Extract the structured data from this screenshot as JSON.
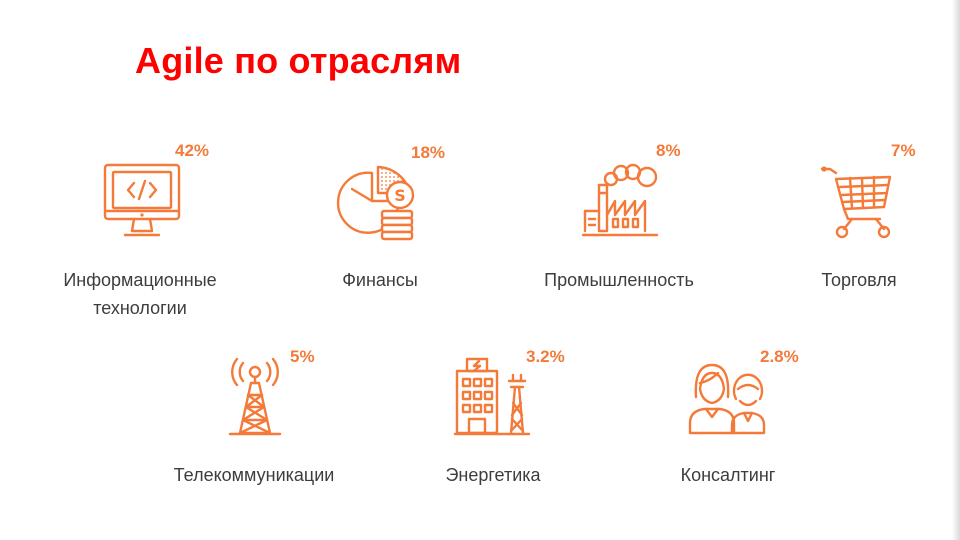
{
  "slide": {
    "title": "Agile по отраслям"
  },
  "industries": [
    {
      "label_line1": "Информационные",
      "label_line2": "технологии",
      "percent": "42%",
      "icon": "computer-code-icon"
    },
    {
      "label_line1": "Финансы",
      "percent": "18%",
      "icon": "pie-chart-coins-icon"
    },
    {
      "label_line1": "Промышленность",
      "percent": "8%",
      "icon": "factory-icon"
    },
    {
      "label_line1": "Торговля",
      "percent": "7%",
      "icon": "shopping-cart-icon"
    },
    {
      "label_line1": "Телекоммуникации",
      "percent": "5%",
      "icon": "radio-tower-icon"
    },
    {
      "label_line1": "Энергетика",
      "percent": "3.2%",
      "icon": "power-plant-icon"
    },
    {
      "label_line1": "Консалтинг",
      "percent": "2.8%",
      "icon": "people-icon"
    }
  ],
  "colors": {
    "title": "#ff0000",
    "accent": "#f47a3a",
    "text": "#3d3d3d"
  }
}
